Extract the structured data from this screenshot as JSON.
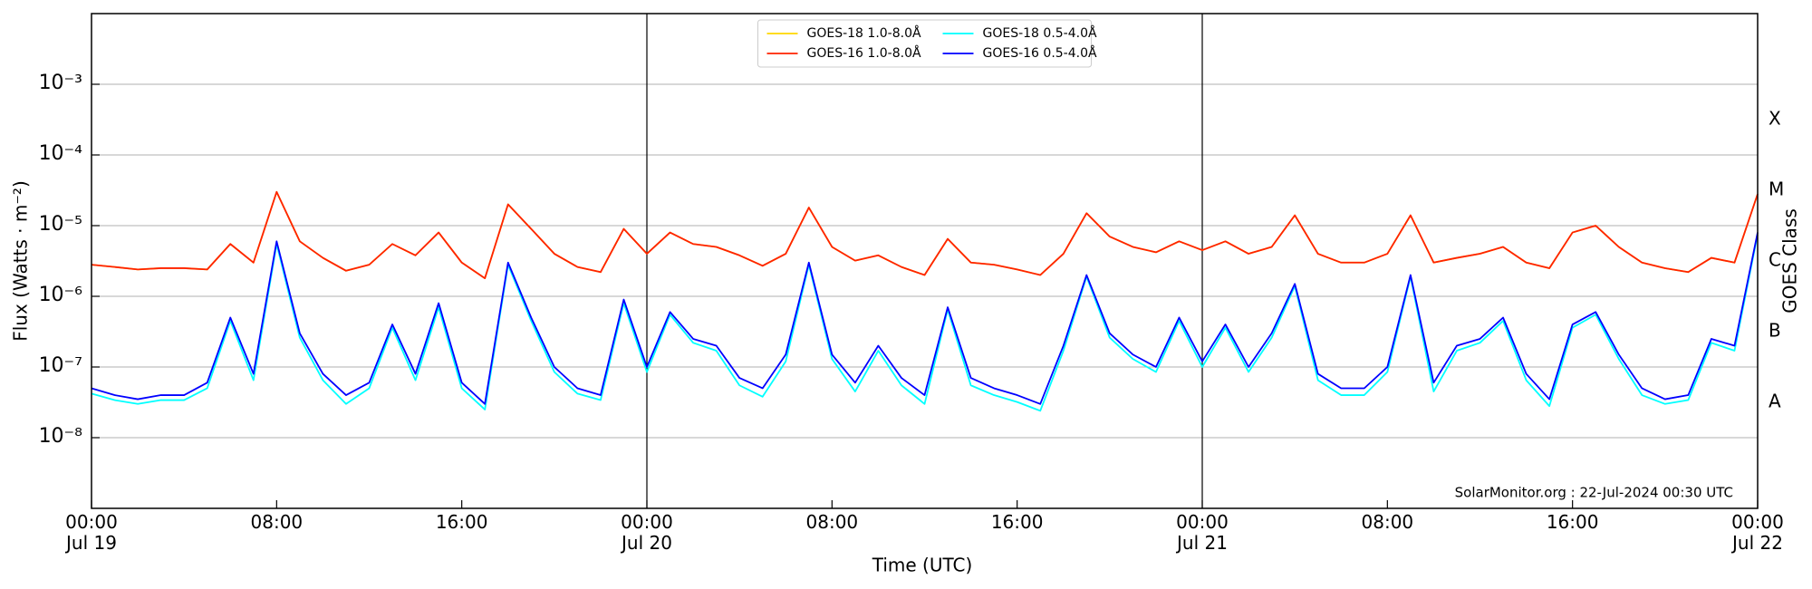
{
  "chart_data": {
    "type": "line",
    "log_y": true,
    "grid": true,
    "legend": "upper center",
    "x_label": "Time (UTC)",
    "y_label": "Flux (Watts · m⁻²)",
    "y2_label": "GOES Class",
    "annotation": "SolarMonitor.org : 22-Jul-2024 00:30 UTC",
    "xlim": [
      "Jul 19 00:00",
      "Jul 22 00:00"
    ],
    "xticks": [
      {
        "value": "Jul 19 00:00",
        "label": "00:00\nJul 19"
      },
      {
        "value": "Jul 19 08:00",
        "label": "08:00"
      },
      {
        "value": "Jul 19 16:00",
        "label": "16:00"
      },
      {
        "value": "Jul 20 00:00",
        "label": "00:00\nJul 20"
      },
      {
        "value": "Jul 20 08:00",
        "label": "08:00"
      },
      {
        "value": "Jul 20 16:00",
        "label": "16:00"
      },
      {
        "value": "Jul 21 00:00",
        "label": "00:00\nJul 21"
      },
      {
        "value": "Jul 21 08:00",
        "label": "08:00"
      },
      {
        "value": "Jul 21 16:00",
        "label": "16:00"
      },
      {
        "value": "Jul 22 00:00",
        "label": "00:00\nJul 22"
      }
    ],
    "day_lines": [
      "Jul 20 00:00",
      "Jul 21 00:00"
    ],
    "ylim": [
      1e-09,
      0.01
    ],
    "yticks": [
      {
        "value": 1e-08,
        "label": "10⁻⁸"
      },
      {
        "value": 1e-07,
        "label": "10⁻⁷"
      },
      {
        "value": 1e-06,
        "label": "10⁻⁶"
      },
      {
        "value": 1e-05,
        "label": "10⁻⁵"
      },
      {
        "value": 0.0001,
        "label": "10⁻⁴"
      },
      {
        "value": 0.001,
        "label": "10⁻³"
      }
    ],
    "y2lim": [
      1e-09,
      0.01
    ],
    "y2ticks": [
      {
        "value": 3.16e-08,
        "label": "A"
      },
      {
        "value": 3.16e-07,
        "label": "B"
      },
      {
        "value": 3.16e-06,
        "label": "C"
      },
      {
        "value": 3.16e-05,
        "label": "M"
      },
      {
        "value": 0.000316,
        "label": "X"
      }
    ],
    "x": [
      "Jul 19 00:00",
      "Jul 19 01:00",
      "Jul 19 02:00",
      "Jul 19 03:00",
      "Jul 19 04:00",
      "Jul 19 05:00",
      "Jul 19 06:00",
      "Jul 19 07:00",
      "Jul 19 08:00",
      "Jul 19 09:00",
      "Jul 19 10:00",
      "Jul 19 11:00",
      "Jul 19 12:00",
      "Jul 19 13:00",
      "Jul 19 14:00",
      "Jul 19 15:00",
      "Jul 19 16:00",
      "Jul 19 17:00",
      "Jul 19 18:00",
      "Jul 19 19:00",
      "Jul 19 20:00",
      "Jul 19 21:00",
      "Jul 19 22:00",
      "Jul 19 23:00",
      "Jul 20 00:00",
      "Jul 20 01:00",
      "Jul 20 02:00",
      "Jul 20 03:00",
      "Jul 20 04:00",
      "Jul 20 05:00",
      "Jul 20 06:00",
      "Jul 20 07:00",
      "Jul 20 08:00",
      "Jul 20 09:00",
      "Jul 20 10:00",
      "Jul 20 11:00",
      "Jul 20 12:00",
      "Jul 20 13:00",
      "Jul 20 14:00",
      "Jul 20 15:00",
      "Jul 20 16:00",
      "Jul 20 17:00",
      "Jul 20 18:00",
      "Jul 20 19:00",
      "Jul 20 20:00",
      "Jul 20 21:00",
      "Jul 20 22:00",
      "Jul 20 23:00",
      "Jul 21 00:00",
      "Jul 21 01:00",
      "Jul 21 02:00",
      "Jul 21 03:00",
      "Jul 21 04:00",
      "Jul 21 05:00",
      "Jul 21 06:00",
      "Jul 21 07:00",
      "Jul 21 08:00",
      "Jul 21 09:00",
      "Jul 21 10:00",
      "Jul 21 11:00",
      "Jul 21 12:00",
      "Jul 21 13:00",
      "Jul 21 14:00",
      "Jul 21 15:00",
      "Jul 21 16:00",
      "Jul 21 17:00",
      "Jul 21 18:00",
      "Jul 21 19:00",
      "Jul 21 20:00",
      "Jul 21 21:00",
      "Jul 21 22:00",
      "Jul 21 23:00",
      "Jul 22 00:00"
    ],
    "series": [
      {
        "name": "GOES-18 1.0-8.0Å",
        "color": "#ffd700",
        "values": [
          2.8e-06,
          2.6e-06,
          2.4e-06,
          2.5e-06,
          2.5e-06,
          2.4e-06,
          5.5e-06,
          3e-06,
          3e-05,
          6e-06,
          3.5e-06,
          2.3e-06,
          2.8e-06,
          5.5e-06,
          3.8e-06,
          8e-06,
          3e-06,
          1.8e-06,
          2e-05,
          9e-06,
          4e-06,
          2.6e-06,
          2.2e-06,
          9e-06,
          4e-06,
          8e-06,
          5.5e-06,
          5e-06,
          3.8e-06,
          2.7e-06,
          4e-06,
          1.8e-05,
          5e-06,
          3.2e-06,
          3.8e-06,
          2.6e-06,
          2e-06,
          6.5e-06,
          3e-06,
          2.8e-06,
          2.4e-06,
          2e-06,
          4e-06,
          1.5e-05,
          7e-06,
          5e-06,
          4.2e-06,
          6e-06,
          4.5e-06,
          6e-06,
          4e-06,
          5e-06,
          1.4e-05,
          4e-06,
          3e-06,
          3e-06,
          4e-06,
          1.4e-05,
          3e-06,
          3.5e-06,
          4e-06,
          5e-06,
          3e-06,
          2.5e-06,
          8e-06,
          1e-05,
          5e-06,
          3e-06,
          2.5e-06,
          2.2e-06,
          3.5e-06,
          3e-06,
          2.8e-05
        ]
      },
      {
        "name": "GOES-16 1.0-8.0Å",
        "color": "#ff2200",
        "values": [
          2.8e-06,
          2.6e-06,
          2.4e-06,
          2.5e-06,
          2.5e-06,
          2.4e-06,
          5.5e-06,
          3e-06,
          3e-05,
          6e-06,
          3.5e-06,
          2.3e-06,
          2.8e-06,
          5.5e-06,
          3.8e-06,
          8e-06,
          3e-06,
          1.8e-06,
          2e-05,
          9e-06,
          4e-06,
          2.6e-06,
          2.2e-06,
          9e-06,
          4e-06,
          8e-06,
          5.5e-06,
          5e-06,
          3.8e-06,
          2.7e-06,
          4e-06,
          1.8e-05,
          5e-06,
          3.2e-06,
          3.8e-06,
          2.6e-06,
          2e-06,
          6.5e-06,
          3e-06,
          2.8e-06,
          2.4e-06,
          2e-06,
          4e-06,
          1.5e-05,
          7e-06,
          5e-06,
          4.2e-06,
          6e-06,
          4.5e-06,
          6e-06,
          4e-06,
          5e-06,
          1.4e-05,
          4e-06,
          3e-06,
          3e-06,
          4e-06,
          1.4e-05,
          3e-06,
          3.5e-06,
          4e-06,
          5e-06,
          3e-06,
          2.5e-06,
          8e-06,
          1e-05,
          5e-06,
          3e-06,
          2.5e-06,
          2.2e-06,
          3.5e-06,
          3e-06,
          2.8e-05
        ]
      },
      {
        "name": "GOES-18 0.5-4.0Å",
        "color": "#00ffff",
        "values": [
          4.2e-08,
          3.4e-08,
          3e-08,
          3.4e-08,
          3.4e-08,
          5e-08,
          4.5e-07,
          6.5e-08,
          5.5e-06,
          2.6e-07,
          6.5e-08,
          3e-08,
          5e-08,
          3.6e-07,
          6.5e-08,
          7e-07,
          5e-08,
          2.5e-08,
          2.8e-06,
          4.5e-07,
          8.5e-08,
          4.2e-08,
          3.4e-08,
          8e-07,
          8.5e-08,
          5.5e-07,
          2.2e-07,
          1.7e-07,
          5.5e-08,
          3.8e-08,
          1.2e-07,
          2.8e-06,
          1.3e-07,
          4.5e-08,
          1.7e-07,
          5.5e-08,
          3e-08,
          6.5e-07,
          5.5e-08,
          4e-08,
          3.2e-08,
          2.4e-08,
          1.7e-07,
          1.9e-06,
          2.6e-07,
          1.3e-07,
          8.5e-08,
          4.5e-07,
          1e-07,
          3.6e-07,
          8.5e-08,
          2.6e-07,
          1.4e-06,
          6.5e-08,
          4e-08,
          4e-08,
          8.5e-08,
          1.9e-06,
          4.5e-08,
          1.7e-07,
          2.2e-07,
          4.5e-07,
          6.5e-08,
          2.8e-08,
          3.6e-07,
          5.5e-07,
          1.3e-07,
          4e-08,
          3e-08,
          3.4e-08,
          2.2e-07,
          1.7e-07,
          7.5e-06
        ]
      },
      {
        "name": "GOES-16 0.5-4.0Å",
        "color": "#0000ff",
        "values": [
          5e-08,
          4e-08,
          3.5e-08,
          4e-08,
          4e-08,
          6e-08,
          5e-07,
          8e-08,
          6e-06,
          3e-07,
          8e-08,
          4e-08,
          6e-08,
          4e-07,
          8e-08,
          8e-07,
          6e-08,
          3e-08,
          3e-06,
          5e-07,
          1e-07,
          5e-08,
          4e-08,
          9e-07,
          1e-07,
          6e-07,
          2.5e-07,
          2e-07,
          7e-08,
          5e-08,
          1.5e-07,
          3e-06,
          1.5e-07,
          6e-08,
          2e-07,
          7e-08,
          4e-08,
          7e-07,
          7e-08,
          5e-08,
          4e-08,
          3e-08,
          2e-07,
          2e-06,
          3e-07,
          1.5e-07,
          1e-07,
          5e-07,
          1.2e-07,
          4e-07,
          1e-07,
          3e-07,
          1.5e-06,
          8e-08,
          5e-08,
          5e-08,
          1e-07,
          2e-06,
          6e-08,
          2e-07,
          2.5e-07,
          5e-07,
          8e-08,
          3.5e-08,
          4e-07,
          6e-07,
          1.5e-07,
          5e-08,
          3.5e-08,
          4e-08,
          2.5e-07,
          2e-07,
          8e-06
        ]
      }
    ]
  }
}
